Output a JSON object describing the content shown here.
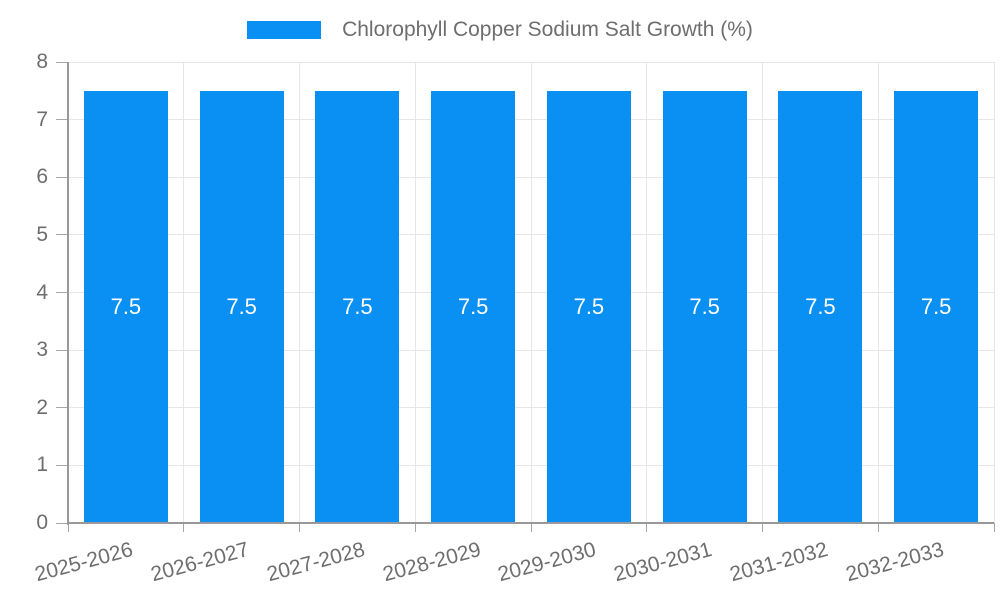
{
  "legend": {
    "label": "Chlorophyll Copper Sodium Salt Growth (%)"
  },
  "chart_data": {
    "type": "bar",
    "title": "Chlorophyll Copper Sodium Salt Growth (%)",
    "categories": [
      "2025-2026",
      "2026-2027",
      "2027-2028",
      "2028-2029",
      "2029-2030",
      "2030-2031",
      "2031-2032",
      "2032-2033"
    ],
    "values": [
      7.5,
      7.5,
      7.5,
      7.5,
      7.5,
      7.5,
      7.5,
      7.5
    ],
    "bar_labels": [
      "7.5",
      "7.5",
      "7.5",
      "7.5",
      "7.5",
      "7.5",
      "7.5",
      "7.5"
    ],
    "xlabel": "",
    "ylabel": "",
    "ylim": [
      0,
      8
    ],
    "yticks": [
      0,
      1,
      2,
      3,
      4,
      5,
      6,
      7,
      8
    ],
    "grid": true,
    "legend_position": "top-center"
  },
  "colors": {
    "bar": "#0a8ff2",
    "bar_label": "#ffffff",
    "axis": "#999999",
    "grid": "#e6e6e6",
    "text": "#6e6e6e"
  }
}
